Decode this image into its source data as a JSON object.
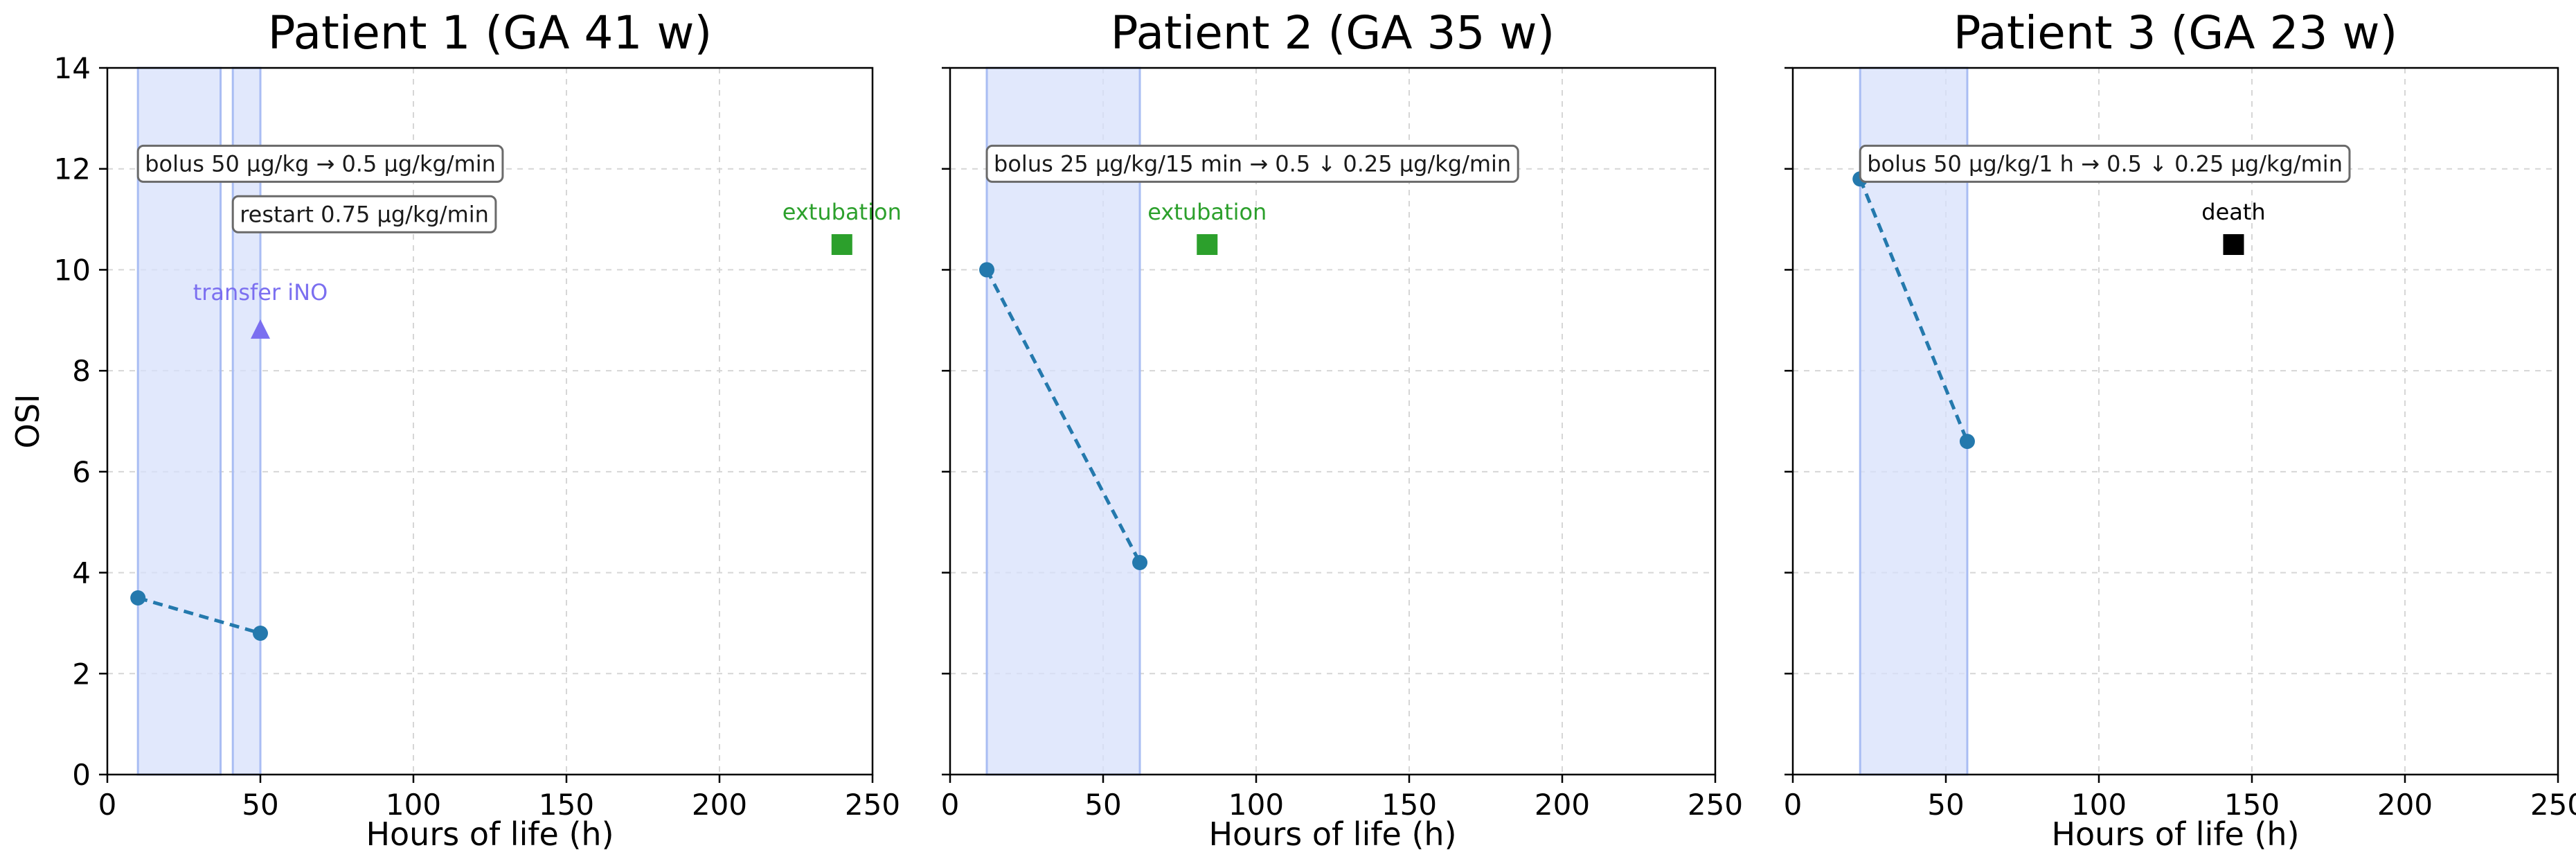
{
  "chart_data": [
    {
      "type": "line",
      "title": "Patient 1 (GA 41 w)",
      "xlabel": "Hours of life (h)",
      "ylabel": "OSI",
      "xlim": [
        0,
        250
      ],
      "ylim": [
        0,
        14
      ],
      "xticks": [
        "0",
        "50",
        "100",
        "150",
        "200",
        "250"
      ],
      "yticks": [
        "0",
        "2",
        "4",
        "6",
        "8",
        "10",
        "12",
        "14"
      ],
      "grid": true,
      "series": [
        {
          "x": [
            10,
            50
          ],
          "y": [
            3.5,
            2.8
          ]
        }
      ],
      "shaded_intervals": [
        [
          10,
          37
        ],
        [
          41,
          50
        ]
      ],
      "box_annotations": [
        {
          "text": "bolus 50 µg/kg → 0.5 µg/kg/min",
          "x": 10,
          "y": 12.1
        },
        {
          "text": "restart 0.75 µg/kg/min",
          "x": 41,
          "y": 11.1
        }
      ],
      "markers": [
        {
          "label": "transfer iNO",
          "x": 50,
          "y": 8.8,
          "shape": "triangle",
          "color": "#7b6ff0"
        },
        {
          "label": "extubation",
          "x": 240,
          "y": 10.5,
          "shape": "square",
          "color": "#2ca02c"
        }
      ]
    },
    {
      "type": "line",
      "title": "Patient 2 (GA 35 w)",
      "xlabel": "Hours of life (h)",
      "ylabel": "",
      "xlim": [
        0,
        250
      ],
      "ylim": [
        0,
        14
      ],
      "xticks": [
        "0",
        "50",
        "100",
        "150",
        "200",
        "250"
      ],
      "yticks": [],
      "grid": true,
      "series": [
        {
          "x": [
            12,
            62
          ],
          "y": [
            10.0,
            4.2
          ]
        }
      ],
      "shaded_intervals": [
        [
          12,
          62
        ]
      ],
      "box_annotations": [
        {
          "text": "bolus 25 µg/kg/15 min → 0.5 ↓ 0.25 µg/kg/min",
          "x": 12,
          "y": 12.1
        }
      ],
      "markers": [
        {
          "label": "extubation",
          "x": 84,
          "y": 10.5,
          "shape": "square",
          "color": "#2ca02c"
        }
      ]
    },
    {
      "type": "line",
      "title": "Patient 3 (GA 23 w)",
      "xlabel": "Hours of life (h)",
      "ylabel": "",
      "xlim": [
        0,
        250
      ],
      "ylim": [
        0,
        14
      ],
      "xticks": [
        "0",
        "50",
        "100",
        "150",
        "200",
        "250"
      ],
      "yticks": [],
      "grid": true,
      "series": [
        {
          "x": [
            22,
            57
          ],
          "y": [
            11.8,
            6.6
          ]
        }
      ],
      "shaded_intervals": [
        [
          22,
          57
        ]
      ],
      "box_annotations": [
        {
          "text": "bolus 50 µg/kg/1 h → 0.5 ↓ 0.25 µg/kg/min",
          "x": 22,
          "y": 12.1
        }
      ],
      "markers": [
        {
          "label": "death",
          "x": 144,
          "y": 10.5,
          "shape": "square",
          "color": "#000000"
        }
      ]
    }
  ]
}
